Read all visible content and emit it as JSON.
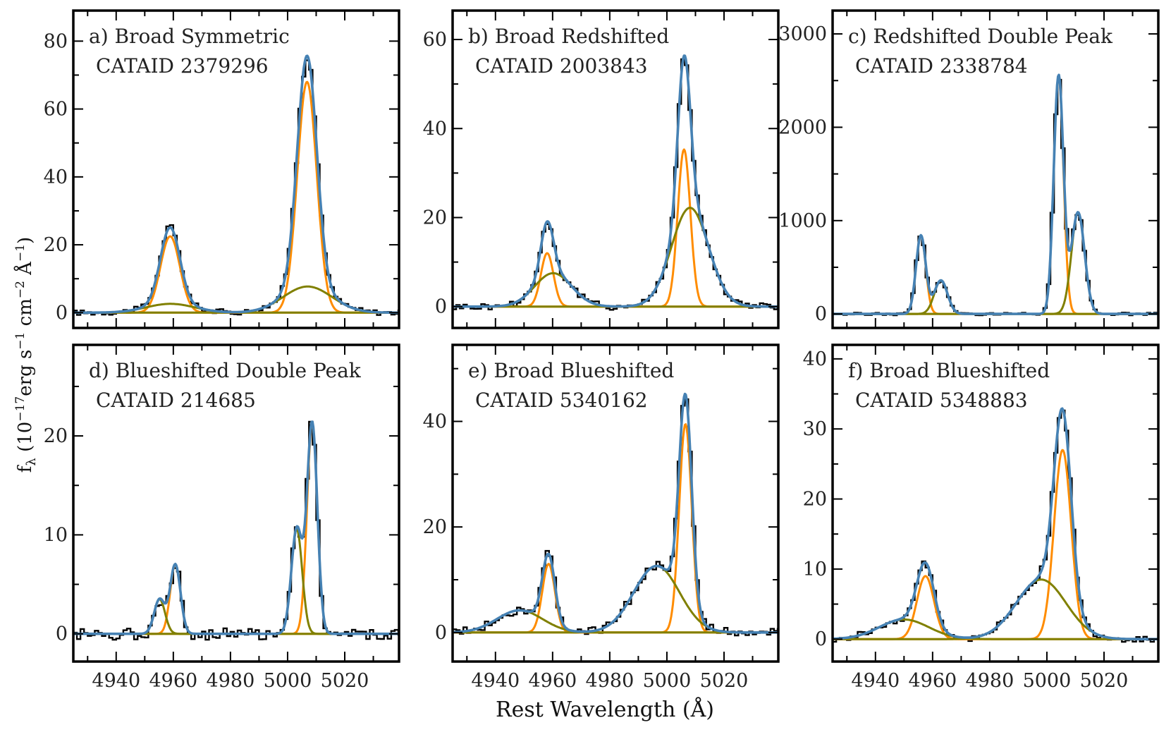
{
  "figure": {
    "xlabel": "Rest Wavelength (Å)",
    "ylabel": "f",
    "ylabel_sub": "λ",
    "ylabel_units": "(10",
    "ylabel_exp1": "−17",
    "ylabel_mid": "erg s",
    "ylabel_exp2": "−1",
    "ylabel_mid2": " cm",
    "ylabel_exp3": "−2",
    "ylabel_mid3": " Å",
    "ylabel_exp4": "−1",
    "ylabel_end": ")"
  },
  "colors": {
    "data": "#000000",
    "total_fit": "#4682b4",
    "narrow": "#ff8c00",
    "broad": "#808000"
  },
  "chart_data": [
    {
      "type": "line",
      "title": "a) Broad Symmetric",
      "subtitle": "CATAID 2379296",
      "xlim": [
        4925,
        5039
      ],
      "ylim": [
        -4.5,
        89
      ],
      "xticks": [
        4940,
        4960,
        4980,
        5000,
        5020
      ],
      "yticks": [
        0,
        20,
        40,
        60,
        80
      ],
      "show_xticklabels": false,
      "components": {
        "narrow": [
          {
            "mu": 4958.9,
            "amp": 22.5,
            "sigma": 3.4
          },
          {
            "mu": 5006.8,
            "amp": 68,
            "sigma": 3.4
          }
        ],
        "broad": [
          {
            "mu": 4959,
            "amp": 2.6,
            "sigma": 8.5
          },
          {
            "mu": 5007,
            "amp": 7.7,
            "sigma": 8.5
          }
        ]
      },
      "noise": 0.8
    },
    {
      "type": "line",
      "title": "b) Broad Redshifted",
      "subtitle": "CATAID 2003843",
      "xlim": [
        4925,
        5039
      ],
      "ylim": [
        -4.8,
        66.5
      ],
      "xticks": [
        4940,
        4960,
        4980,
        5000,
        5020
      ],
      "yticks": [
        0,
        20,
        40,
        60
      ],
      "show_xticklabels": false,
      "components": {
        "narrow": [
          {
            "mu": 4958.1,
            "amp": 12,
            "sigma": 2.2
          },
          {
            "mu": 5006,
            "amp": 35.3,
            "sigma": 2.2
          }
        ],
        "broad": [
          {
            "mu": 4960.2,
            "amp": 7.5,
            "sigma": 6.5
          },
          {
            "mu": 5008.1,
            "amp": 22.2,
            "sigma": 6.5
          }
        ]
      },
      "noise": 0.8
    },
    {
      "type": "line",
      "title": "c) Redshifted Double Peak",
      "subtitle": "CATAID 2338784",
      "xlim": [
        4925,
        5039
      ],
      "ylim": [
        -150,
        3250
      ],
      "xticks": [
        4940,
        4960,
        4980,
        5000,
        5020
      ],
      "yticks": [
        0,
        1000,
        2000,
        3000
      ],
      "show_xticklabels": false,
      "components": {
        "narrow": [
          {
            "mu": 4955.9,
            "amp": 840,
            "sigma": 1.7
          },
          {
            "mu": 5004.1,
            "amp": 2550,
            "sigma": 1.7
          }
        ],
        "broad": [
          {
            "mu": 4962.9,
            "amp": 360,
            "sigma": 2.3
          },
          {
            "mu": 5010.9,
            "amp": 1090,
            "sigma": 2.3
          }
        ]
      },
      "noise": 15
    },
    {
      "type": "line",
      "title": "d) Blueshifted Double Peak",
      "subtitle": "CATAID 214685",
      "xlim": [
        4925,
        5039
      ],
      "ylim": [
        -2.8,
        29.2
      ],
      "xticks": [
        4940,
        4960,
        4980,
        5000,
        5020
      ],
      "yticks": [
        0,
        10,
        20
      ],
      "show_xticklabels": true,
      "components": {
        "narrow": [
          {
            "mu": 4960.7,
            "amp": 7,
            "sigma": 1.8
          },
          {
            "mu": 5008.6,
            "amp": 21.3,
            "sigma": 1.8
          }
        ],
        "broad": [
          {
            "mu": 4955.2,
            "amp": 3.5,
            "sigma": 1.9
          },
          {
            "mu": 5003.2,
            "amp": 10.6,
            "sigma": 1.9
          }
        ]
      },
      "noise": 0.6
    },
    {
      "type": "line",
      "title": "e) Broad Blueshifted",
      "subtitle": "CATAID 5340162",
      "xlim": [
        4925,
        5039
      ],
      "ylim": [
        -5.5,
        54.5
      ],
      "xticks": [
        4940,
        4960,
        4980,
        5000,
        5020
      ],
      "yticks": [
        0,
        20,
        40
      ],
      "show_xticklabels": true,
      "components": {
        "narrow": [
          {
            "mu": 4958.6,
            "amp": 13,
            "sigma": 2.2
          },
          {
            "mu": 5006.5,
            "amp": 39.5,
            "sigma": 2.2
          }
        ],
        "broad": [
          {
            "mu": 4948.5,
            "amp": 4.2,
            "sigma": 8
          },
          {
            "mu": 4996.4,
            "amp": 12.6,
            "sigma": 8
          }
        ]
      },
      "noise": 0.8
    },
    {
      "type": "line",
      "title": "f) Broad Blueshifted",
      "subtitle": "CATAID 5348883",
      "xlim": [
        4925,
        5039
      ],
      "ylim": [
        -3.2,
        42
      ],
      "xticks": [
        4940,
        4960,
        4980,
        5000,
        5020
      ],
      "yticks": [
        0,
        10,
        20,
        30,
        40
      ],
      "show_xticklabels": true,
      "components": {
        "narrow": [
          {
            "mu": 4957.5,
            "amp": 9,
            "sigma": 3
          },
          {
            "mu": 5005.5,
            "amp": 27,
            "sigma": 3
          }
        ],
        "broad": [
          {
            "mu": 4950,
            "amp": 2.8,
            "sigma": 8.7
          },
          {
            "mu": 4998,
            "amp": 8.5,
            "sigma": 8.7
          }
        ]
      },
      "noise": 0.5
    }
  ]
}
